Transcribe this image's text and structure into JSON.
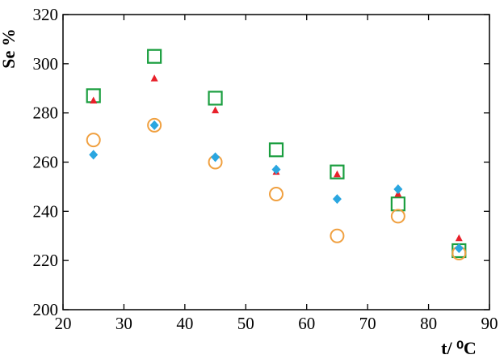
{
  "chart_data": {
    "type": "scatter",
    "title": "",
    "xlabel": "t/ ⁰C",
    "ylabel": "Se %",
    "xlim": [
      20,
      90
    ],
    "ylim": [
      200,
      320
    ],
    "xticks": [
      20,
      30,
      40,
      50,
      60,
      70,
      80,
      90
    ],
    "yticks": [
      200,
      220,
      240,
      260,
      280,
      300,
      320
    ],
    "grid": false,
    "legend": "none",
    "series": [
      {
        "marker": "open-square",
        "color": "#1a9e3f",
        "x": [
          25,
          35,
          45,
          55,
          65,
          75,
          85
        ],
        "y": [
          287,
          303,
          286,
          265,
          256,
          243,
          224
        ]
      },
      {
        "marker": "filled-triangle",
        "color": "#e8202a",
        "x": [
          25,
          35,
          45,
          55,
          65,
          75,
          85
        ],
        "y": [
          285,
          294,
          281,
          256,
          255,
          247,
          229
        ]
      },
      {
        "marker": "open-circle",
        "color": "#f0a040",
        "x": [
          25,
          35,
          45,
          55,
          65,
          75,
          85
        ],
        "y": [
          269,
          275,
          260,
          247,
          230,
          238,
          223
        ]
      },
      {
        "marker": "filled-diamond",
        "color": "#2aa6e0",
        "x": [
          25,
          35,
          45,
          55,
          65,
          75,
          85
        ],
        "y": [
          263,
          275,
          262,
          257,
          245,
          249,
          225
        ]
      }
    ]
  }
}
